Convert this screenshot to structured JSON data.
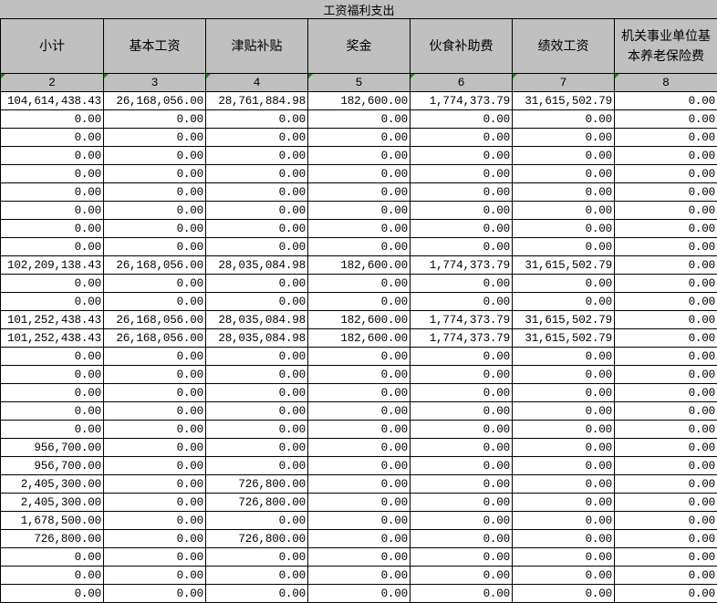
{
  "title": "工资福利支出",
  "headers": [
    "小计",
    "基本工资",
    "津贴补贴",
    "奖金",
    "伙食补助费",
    "绩效工资",
    "机关事业单位基本养老保险费"
  ],
  "column_numbers": [
    "2",
    "3",
    "4",
    "5",
    "6",
    "7",
    "8"
  ],
  "rows": [
    [
      "104,614,438.43",
      "26,168,056.00",
      "28,761,884.98",
      "182,600.00",
      "1,774,373.79",
      "31,615,502.79",
      "0.00"
    ],
    [
      "0.00",
      "0.00",
      "0.00",
      "0.00",
      "0.00",
      "0.00",
      "0.00"
    ],
    [
      "0.00",
      "0.00",
      "0.00",
      "0.00",
      "0.00",
      "0.00",
      "0.00"
    ],
    [
      "0.00",
      "0.00",
      "0.00",
      "0.00",
      "0.00",
      "0.00",
      "0.00"
    ],
    [
      "0.00",
      "0.00",
      "0.00",
      "0.00",
      "0.00",
      "0.00",
      "0.00"
    ],
    [
      "0.00",
      "0.00",
      "0.00",
      "0.00",
      "0.00",
      "0.00",
      "0.00"
    ],
    [
      "0.00",
      "0.00",
      "0.00",
      "0.00",
      "0.00",
      "0.00",
      "0.00"
    ],
    [
      "0.00",
      "0.00",
      "0.00",
      "0.00",
      "0.00",
      "0.00",
      "0.00"
    ],
    [
      "0.00",
      "0.00",
      "0.00",
      "0.00",
      "0.00",
      "0.00",
      "0.00"
    ],
    [
      "102,209,138.43",
      "26,168,056.00",
      "28,035,084.98",
      "182,600.00",
      "1,774,373.79",
      "31,615,502.79",
      "0.00"
    ],
    [
      "0.00",
      "0.00",
      "0.00",
      "0.00",
      "0.00",
      "0.00",
      "0.00"
    ],
    [
      "0.00",
      "0.00",
      "0.00",
      "0.00",
      "0.00",
      "0.00",
      "0.00"
    ],
    [
      "101,252,438.43",
      "26,168,056.00",
      "28,035,084.98",
      "182,600.00",
      "1,774,373.79",
      "31,615,502.79",
      "0.00"
    ],
    [
      "101,252,438.43",
      "26,168,056.00",
      "28,035,084.98",
      "182,600.00",
      "1,774,373.79",
      "31,615,502.79",
      "0.00"
    ],
    [
      "0.00",
      "0.00",
      "0.00",
      "0.00",
      "0.00",
      "0.00",
      "0.00"
    ],
    [
      "0.00",
      "0.00",
      "0.00",
      "0.00",
      "0.00",
      "0.00",
      "0.00"
    ],
    [
      "0.00",
      "0.00",
      "0.00",
      "0.00",
      "0.00",
      "0.00",
      "0.00"
    ],
    [
      "0.00",
      "0.00",
      "0.00",
      "0.00",
      "0.00",
      "0.00",
      "0.00"
    ],
    [
      "0.00",
      "0.00",
      "0.00",
      "0.00",
      "0.00",
      "0.00",
      "0.00"
    ],
    [
      "956,700.00",
      "0.00",
      "0.00",
      "0.00",
      "0.00",
      "0.00",
      "0.00"
    ],
    [
      "956,700.00",
      "0.00",
      "0.00",
      "0.00",
      "0.00",
      "0.00",
      "0.00"
    ],
    [
      "2,405,300.00",
      "0.00",
      "726,800.00",
      "0.00",
      "0.00",
      "0.00",
      "0.00"
    ],
    [
      "2,405,300.00",
      "0.00",
      "726,800.00",
      "0.00",
      "0.00",
      "0.00",
      "0.00"
    ],
    [
      "1,678,500.00",
      "0.00",
      "0.00",
      "0.00",
      "0.00",
      "0.00",
      "0.00"
    ],
    [
      "726,800.00",
      "0.00",
      "726,800.00",
      "0.00",
      "0.00",
      "0.00",
      "0.00"
    ],
    [
      "0.00",
      "0.00",
      "0.00",
      "0.00",
      "0.00",
      "0.00",
      "0.00"
    ],
    [
      "0.00",
      "0.00",
      "0.00",
      "0.00",
      "0.00",
      "0.00",
      "0.00"
    ],
    [
      "0.00",
      "0.00",
      "0.00",
      "0.00",
      "0.00",
      "0.00",
      "0.00"
    ]
  ],
  "colors": {
    "header_bg": "#c0c0c0",
    "grid": "#000000",
    "comment_marker": "#1a8a1a"
  }
}
